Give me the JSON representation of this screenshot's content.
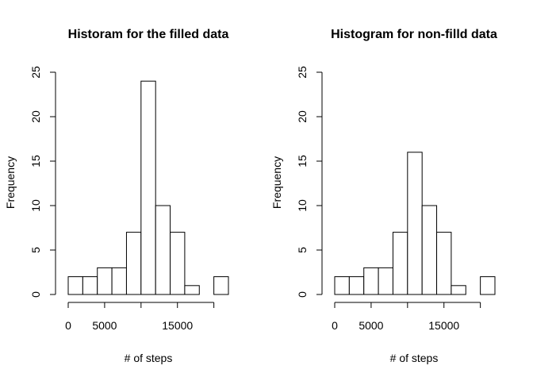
{
  "chart_data": [
    {
      "type": "bar",
      "title": "Historam for the filled data",
      "xlabel": "# of steps",
      "ylabel": "Frequency",
      "bin_width": 2000,
      "bins_start": 0,
      "values": [
        2,
        2,
        3,
        3,
        7,
        24,
        10,
        7,
        1,
        0,
        2
      ],
      "xlim": [
        0,
        22000
      ],
      "ylim": [
        0,
        25
      ],
      "x_ticks": [
        0,
        5000,
        10000,
        15000,
        20000
      ],
      "x_tick_labels": [
        "0",
        "5000",
        "",
        "15000",
        ""
      ],
      "y_ticks": [
        0,
        5,
        10,
        15,
        20,
        25
      ],
      "y_tick_labels": [
        "0",
        "5",
        "10",
        "15",
        "20",
        "25"
      ],
      "grid": false
    },
    {
      "type": "bar",
      "title": "Histogram for non-filld data",
      "xlabel": "# of steps",
      "ylabel": "Frequency",
      "bin_width": 2000,
      "bins_start": 0,
      "values": [
        2,
        2,
        3,
        3,
        7,
        16,
        10,
        7,
        1,
        0,
        2
      ],
      "xlim": [
        0,
        22000
      ],
      "ylim": [
        0,
        25
      ],
      "x_ticks": [
        0,
        5000,
        10000,
        15000,
        20000
      ],
      "x_tick_labels": [
        "0",
        "5000",
        "",
        "15000",
        ""
      ],
      "y_ticks": [
        0,
        5,
        10,
        15,
        20,
        25
      ],
      "y_tick_labels": [
        "0",
        "5",
        "10",
        "15",
        "20",
        "25"
      ],
      "grid": false
    }
  ]
}
